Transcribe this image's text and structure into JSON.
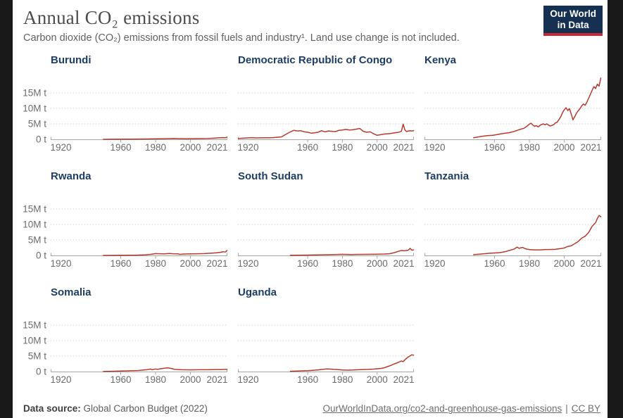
{
  "page": {
    "title": "Annual CO₂ emissions",
    "subtitle": "Carbon dioxide (CO₂) emissions from fossil fuels and industry¹. Land use change is not included.",
    "logo": {
      "line1": "Our World",
      "line2": "in Data"
    },
    "footer": {
      "source_label": "Data source:",
      "source_value": "Global Carbon Budget (2022)",
      "link": "OurWorldInData.org/co2-and-greenhouse-gas-emissions",
      "separator": "|",
      "license": "CC BY"
    }
  },
  "colors": {
    "navy": "#153050",
    "logo_red": "#c52735",
    "entity_blue": "#1d3d63",
    "series_red": "#b63b2e",
    "gridline": "#d6d6d6",
    "axis": "#a6a6a6",
    "tick_text": "#6b6b6b"
  },
  "chart_data": {
    "type": "line",
    "title": "Annual CO₂ emissions",
    "subtitle": "Carbon dioxide (CO₂) emissions from fossil fuels and industry. Land use change is not included.",
    "value_unit": "million tonnes CO₂ per year",
    "layout": "small-multiples 3x3 (8 panels)",
    "xlim": [
      1920,
      2021
    ],
    "ylim": [
      0,
      20
    ],
    "x_ticks": [
      1920,
      1960,
      1980,
      2000,
      2021
    ],
    "y_axis": [
      {
        "value": 0,
        "label": "0 t"
      },
      {
        "value": 5,
        "label": "5M t"
      },
      {
        "value": 10,
        "label": "10M t"
      },
      {
        "value": 15,
        "label": "15M t"
      }
    ],
    "grid": "horizontal dotted at 5M, 10M, 15M",
    "legend": "none",
    "panels": [
      {
        "id": "burundi",
        "name": "Burundi",
        "series": [
          [
            1950,
            0.01
          ],
          [
            1955,
            0.02
          ],
          [
            1960,
            0.04
          ],
          [
            1965,
            0.06
          ],
          [
            1970,
            0.08
          ],
          [
            1975,
            0.12
          ],
          [
            1980,
            0.15
          ],
          [
            1985,
            0.2
          ],
          [
            1990,
            0.28
          ],
          [
            1994,
            0.22
          ],
          [
            1998,
            0.2
          ],
          [
            2002,
            0.22
          ],
          [
            2006,
            0.26
          ],
          [
            2010,
            0.3
          ],
          [
            2014,
            0.42
          ],
          [
            2017,
            0.5
          ],
          [
            2019,
            0.55
          ],
          [
            2020,
            0.5
          ],
          [
            2021,
            0.7
          ]
        ]
      },
      {
        "id": "drc",
        "name": "Democratic Republic of Congo",
        "series": [
          [
            1920,
            0.3
          ],
          [
            1925,
            0.45
          ],
          [
            1928,
            0.55
          ],
          [
            1930,
            0.45
          ],
          [
            1935,
            0.5
          ],
          [
            1940,
            0.55
          ],
          [
            1945,
            0.8
          ],
          [
            1947,
            1.5
          ],
          [
            1950,
            2.4
          ],
          [
            1952,
            2.9
          ],
          [
            1954,
            2.7
          ],
          [
            1956,
            2.8
          ],
          [
            1958,
            2.4
          ],
          [
            1960,
            2.3
          ],
          [
            1962,
            2.0
          ],
          [
            1964,
            2.1
          ],
          [
            1966,
            2.3
          ],
          [
            1968,
            2.8
          ],
          [
            1970,
            2.4
          ],
          [
            1972,
            2.7
          ],
          [
            1974,
            2.6
          ],
          [
            1976,
            2.5
          ],
          [
            1978,
            2.9
          ],
          [
            1980,
            3.0
          ],
          [
            1982,
            3.2
          ],
          [
            1984,
            3.0
          ],
          [
            1986,
            3.1
          ],
          [
            1988,
            3.3
          ],
          [
            1990,
            3.5
          ],
          [
            1992,
            2.6
          ],
          [
            1994,
            2.3
          ],
          [
            1996,
            2.4
          ],
          [
            1998,
            1.8
          ],
          [
            2000,
            1.3
          ],
          [
            2002,
            1.5
          ],
          [
            2004,
            1.7
          ],
          [
            2006,
            1.8
          ],
          [
            2008,
            1.9
          ],
          [
            2010,
            2.1
          ],
          [
            2012,
            2.2
          ],
          [
            2014,
            2.6
          ],
          [
            2015,
            4.9
          ],
          [
            2016,
            3.0
          ],
          [
            2017,
            2.5
          ],
          [
            2018,
            2.7
          ],
          [
            2019,
            2.8
          ],
          [
            2020,
            2.7
          ],
          [
            2021,
            2.8
          ]
        ]
      },
      {
        "id": "kenya",
        "name": "Kenya",
        "series": [
          [
            1948,
            0.5
          ],
          [
            1950,
            0.7
          ],
          [
            1953,
            1.0
          ],
          [
            1956,
            1.2
          ],
          [
            1959,
            1.3
          ],
          [
            1962,
            1.6
          ],
          [
            1965,
            1.9
          ],
          [
            1968,
            2.1
          ],
          [
            1971,
            2.5
          ],
          [
            1974,
            3.1
          ],
          [
            1977,
            3.6
          ],
          [
            1979,
            4.4
          ],
          [
            1980,
            4.9
          ],
          [
            1981,
            5.2
          ],
          [
            1982,
            4.6
          ],
          [
            1983,
            4.2
          ],
          [
            1984,
            4.4
          ],
          [
            1985,
            4.0
          ],
          [
            1986,
            4.5
          ],
          [
            1987,
            4.8
          ],
          [
            1988,
            5.0
          ],
          [
            1989,
            4.7
          ],
          [
            1990,
            5.0
          ],
          [
            1991,
            4.6
          ],
          [
            1992,
            4.3
          ],
          [
            1993,
            4.5
          ],
          [
            1994,
            4.8
          ],
          [
            1995,
            5.3
          ],
          [
            1996,
            5.6
          ],
          [
            1997,
            6.4
          ],
          [
            1998,
            7.3
          ],
          [
            1999,
            8.6
          ],
          [
            2000,
            9.5
          ],
          [
            2001,
            10.2
          ],
          [
            2002,
            9.3
          ],
          [
            2003,
            9.9
          ],
          [
            2004,
            8.2
          ],
          [
            2005,
            6.3
          ],
          [
            2006,
            7.3
          ],
          [
            2007,
            8.4
          ],
          [
            2008,
            9.2
          ],
          [
            2009,
            9.9
          ],
          [
            2010,
            10.8
          ],
          [
            2011,
            11.4
          ],
          [
            2012,
            11.0
          ],
          [
            2013,
            12.0
          ],
          [
            2014,
            13.3
          ],
          [
            2015,
            14.5
          ],
          [
            2016,
            15.8
          ],
          [
            2017,
            17.0
          ],
          [
            2018,
            16.4
          ],
          [
            2019,
            17.8
          ],
          [
            2020,
            17.2
          ],
          [
            2021,
            19.8
          ]
        ]
      },
      {
        "id": "rwanda",
        "name": "Rwanda",
        "series": [
          [
            1950,
            0.01
          ],
          [
            1955,
            0.02
          ],
          [
            1960,
            0.05
          ],
          [
            1965,
            0.08
          ],
          [
            1970,
            0.12
          ],
          [
            1974,
            0.2
          ],
          [
            1977,
            0.35
          ],
          [
            1980,
            0.6
          ],
          [
            1982,
            0.55
          ],
          [
            1985,
            0.5
          ],
          [
            1988,
            0.62
          ],
          [
            1990,
            0.55
          ],
          [
            1993,
            0.5
          ],
          [
            1994,
            0.35
          ],
          [
            1996,
            0.45
          ],
          [
            2000,
            0.5
          ],
          [
            2004,
            0.55
          ],
          [
            2008,
            0.6
          ],
          [
            2012,
            0.72
          ],
          [
            2015,
            0.85
          ],
          [
            2017,
            1.0
          ],
          [
            2019,
            1.2
          ],
          [
            2020,
            1.1
          ],
          [
            2021,
            1.6
          ]
        ]
      },
      {
        "id": "south-sudan",
        "name": "South Sudan",
        "series": [
          [
            1950,
            0.05
          ],
          [
            1955,
            0.08
          ],
          [
            1960,
            0.12
          ],
          [
            1965,
            0.16
          ],
          [
            1970,
            0.22
          ],
          [
            1975,
            0.3
          ],
          [
            1980,
            0.36
          ],
          [
            1985,
            0.3
          ],
          [
            1990,
            0.34
          ],
          [
            1995,
            0.36
          ],
          [
            2000,
            0.4
          ],
          [
            2004,
            0.45
          ],
          [
            2007,
            0.55
          ],
          [
            2010,
            0.9
          ],
          [
            2012,
            1.3
          ],
          [
            2014,
            1.6
          ],
          [
            2016,
            1.5
          ],
          [
            2018,
            1.7
          ],
          [
            2019,
            2.3
          ],
          [
            2020,
            1.7
          ],
          [
            2021,
            1.8
          ]
        ]
      },
      {
        "id": "tanzania",
        "name": "Tanzania",
        "series": [
          [
            1948,
            0.25
          ],
          [
            1951,
            0.4
          ],
          [
            1954,
            0.55
          ],
          [
            1957,
            0.7
          ],
          [
            1960,
            0.8
          ],
          [
            1963,
            0.9
          ],
          [
            1966,
            1.2
          ],
          [
            1969,
            1.7
          ],
          [
            1971,
            2.0
          ],
          [
            1973,
            2.7
          ],
          [
            1974,
            2.3
          ],
          [
            1976,
            2.6
          ],
          [
            1978,
            2.1
          ],
          [
            1980,
            1.9
          ],
          [
            1983,
            1.8
          ],
          [
            1986,
            1.8
          ],
          [
            1989,
            1.9
          ],
          [
            1992,
            1.9
          ],
          [
            1995,
            2.0
          ],
          [
            1998,
            2.2
          ],
          [
            2000,
            2.4
          ],
          [
            2002,
            2.9
          ],
          [
            2004,
            3.1
          ],
          [
            2006,
            3.8
          ],
          [
            2008,
            4.5
          ],
          [
            2010,
            5.6
          ],
          [
            2012,
            6.2
          ],
          [
            2014,
            7.4
          ],
          [
            2016,
            9.4
          ],
          [
            2017,
            10.0
          ],
          [
            2018,
            10.6
          ],
          [
            2019,
            11.9
          ],
          [
            2020,
            12.9
          ],
          [
            2021,
            12.5
          ]
        ]
      },
      {
        "id": "somalia",
        "name": "Somalia",
        "series": [
          [
            1950,
            0.03
          ],
          [
            1955,
            0.08
          ],
          [
            1960,
            0.15
          ],
          [
            1965,
            0.25
          ],
          [
            1970,
            0.35
          ],
          [
            1973,
            0.5
          ],
          [
            1975,
            0.6
          ],
          [
            1977,
            0.8
          ],
          [
            1978,
            0.6
          ],
          [
            1980,
            0.85
          ],
          [
            1981,
            0.7
          ],
          [
            1983,
            0.9
          ],
          [
            1985,
            1.1
          ],
          [
            1987,
            1.2
          ],
          [
            1989,
            1.0
          ],
          [
            1991,
            0.7
          ],
          [
            1995,
            0.6
          ],
          [
            2000,
            0.55
          ],
          [
            2005,
            0.6
          ],
          [
            2010,
            0.6
          ],
          [
            2015,
            0.65
          ],
          [
            2018,
            0.65
          ],
          [
            2021,
            0.7
          ]
        ]
      },
      {
        "id": "uganda",
        "name": "Uganda",
        "series": [
          [
            1950,
            0.1
          ],
          [
            1955,
            0.2
          ],
          [
            1960,
            0.3
          ],
          [
            1963,
            0.4
          ],
          [
            1966,
            0.55
          ],
          [
            1969,
            0.75
          ],
          [
            1971,
            0.85
          ],
          [
            1973,
            0.8
          ],
          [
            1975,
            0.7
          ],
          [
            1977,
            0.65
          ],
          [
            1980,
            0.5
          ],
          [
            1983,
            0.45
          ],
          [
            1986,
            0.5
          ],
          [
            1989,
            0.6
          ],
          [
            1992,
            0.65
          ],
          [
            1995,
            0.7
          ],
          [
            1998,
            0.8
          ],
          [
            2000,
            0.9
          ],
          [
            2002,
            1.0
          ],
          [
            2004,
            1.2
          ],
          [
            2006,
            1.6
          ],
          [
            2008,
            2.0
          ],
          [
            2010,
            2.5
          ],
          [
            2012,
            2.9
          ],
          [
            2014,
            3.4
          ],
          [
            2015,
            3.2
          ],
          [
            2016,
            3.8
          ],
          [
            2017,
            4.3
          ],
          [
            2018,
            4.7
          ],
          [
            2019,
            5.1
          ],
          [
            2020,
            5.4
          ],
          [
            2021,
            5.3
          ]
        ]
      }
    ]
  }
}
